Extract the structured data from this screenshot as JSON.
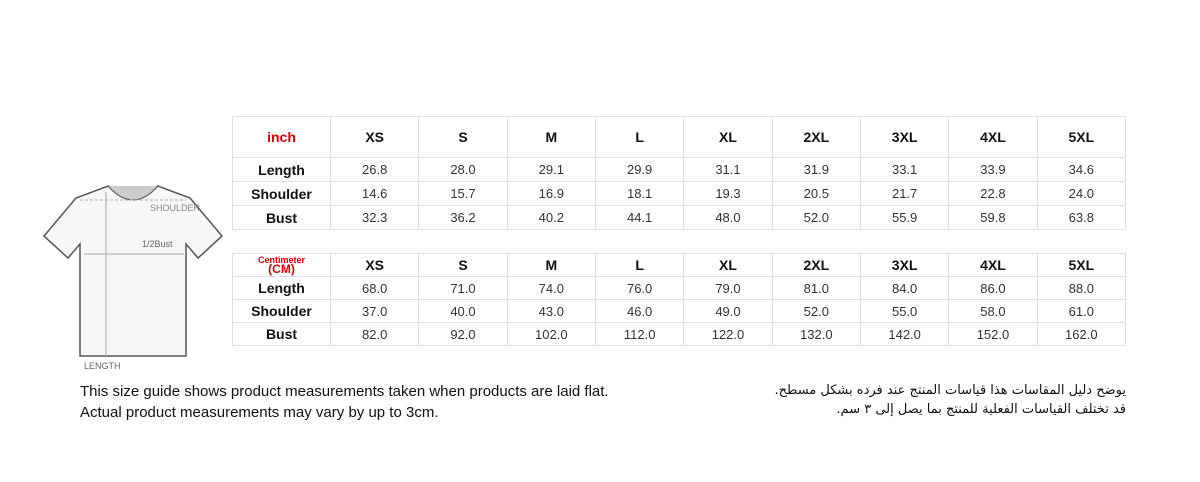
{
  "inch_table": {
    "unit_label": "inch",
    "sizes": [
      "XS",
      "S",
      "M",
      "L",
      "XL",
      "2XL",
      "3XL",
      "4XL",
      "5XL"
    ],
    "rows": [
      {
        "label": "Length",
        "values": [
          "26.8",
          "28.0",
          "29.1",
          "29.9",
          "31.1",
          "31.9",
          "33.1",
          "33.9",
          "34.6"
        ]
      },
      {
        "label": "Shoulder",
        "values": [
          "14.6",
          "15.7",
          "16.9",
          "18.1",
          "19.3",
          "20.5",
          "21.7",
          "22.8",
          "24.0"
        ]
      },
      {
        "label": "Bust",
        "values": [
          "32.3",
          "36.2",
          "40.2",
          "44.1",
          "48.0",
          "52.0",
          "55.9",
          "59.8",
          "63.8"
        ]
      }
    ]
  },
  "cm_table": {
    "unit_label": "Centimeter",
    "unit_sublabel": "(CM)",
    "sizes": [
      "XS",
      "S",
      "M",
      "L",
      "XL",
      "2XL",
      "3XL",
      "4XL",
      "5XL"
    ],
    "rows": [
      {
        "label": "Length",
        "values": [
          "68.0",
          "71.0",
          "74.0",
          "76.0",
          "79.0",
          "81.0",
          "84.0",
          "86.0",
          "88.0"
        ]
      },
      {
        "label": "Shoulder",
        "values": [
          "37.0",
          "40.0",
          "43.0",
          "46.0",
          "49.0",
          "52.0",
          "55.0",
          "58.0",
          "61.0"
        ]
      },
      {
        "label": "Bust",
        "values": [
          "82.0",
          "92.0",
          "102.0",
          "112.0",
          "122.0",
          "132.0",
          "142.0",
          "152.0",
          "162.0"
        ]
      }
    ]
  },
  "diagram": {
    "shoulder": "SHOULDER",
    "half_bust": "1/2Bust",
    "length": "LENGTH"
  },
  "notes": {
    "english": [
      "This size guide shows product measurements taken when products are laid flat.",
      "Actual product measurements may vary by up to 3cm."
    ],
    "arabic": [
      "يوضح دليل المقاسات هذا قياسات المنتج عند فرده بشكل مسطح.",
      "قد تختلف القياسات الفعلية للمنتج بما يصل إلى ٣ سم."
    ]
  }
}
